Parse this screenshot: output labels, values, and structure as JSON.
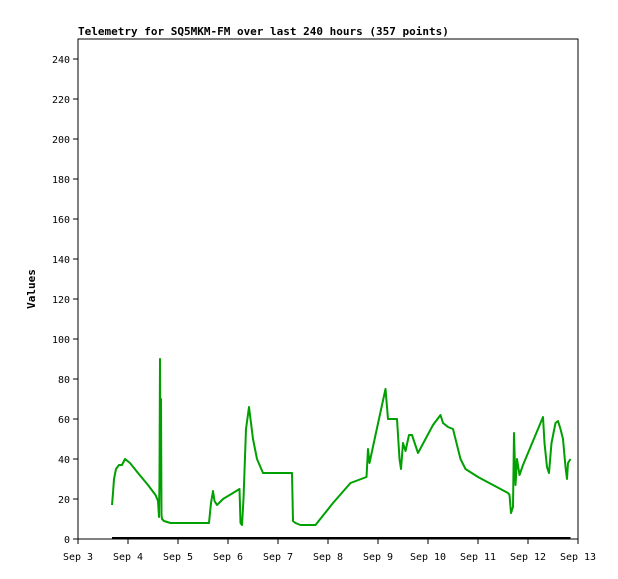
{
  "chart_data": {
    "type": "line",
    "title": "Telemetry for SQ5MKM-FM over last 240 hours (357 points)",
    "ylabel": "Values",
    "xlabel": "",
    "ylim": [
      0,
      250
    ],
    "xlim": [
      3,
      13
    ],
    "y_ticks": [
      0,
      20,
      40,
      60,
      80,
      100,
      120,
      140,
      160,
      180,
      200,
      220,
      240
    ],
    "x_ticks": [
      3,
      4,
      5,
      6,
      7,
      8,
      9,
      10,
      11,
      12,
      13
    ],
    "x_tick_labels": [
      "Sep 3",
      "Sep 4",
      "Sep 5",
      "Sep 6",
      "Sep 7",
      "Sep 8",
      "Sep 9",
      "Sep 10",
      "Sep 11",
      "Sep 12",
      "Sep 13"
    ],
    "grid": false,
    "legend": "none",
    "series": [
      {
        "color": "#00a000",
        "points": [
          [
            3.68,
            17
          ],
          [
            3.7,
            23
          ],
          [
            3.72,
            30
          ],
          [
            3.76,
            35
          ],
          [
            3.82,
            37
          ],
          [
            3.88,
            37
          ],
          [
            3.94,
            40
          ],
          [
            4.04,
            38
          ],
          [
            4.2,
            33
          ],
          [
            4.4,
            27
          ],
          [
            4.55,
            22
          ],
          [
            4.6,
            19
          ],
          [
            4.62,
            11
          ],
          [
            4.63,
            30
          ],
          [
            4.64,
            90
          ],
          [
            4.65,
            30
          ],
          [
            4.66,
            70
          ],
          [
            4.67,
            12
          ],
          [
            4.68,
            10
          ],
          [
            4.72,
            9
          ],
          [
            4.85,
            8
          ],
          [
            5.2,
            8
          ],
          [
            5.35,
            8
          ],
          [
            5.5,
            8
          ],
          [
            5.62,
            8
          ],
          [
            5.66,
            18
          ],
          [
            5.7,
            24
          ],
          [
            5.73,
            19
          ],
          [
            5.78,
            17
          ],
          [
            5.9,
            20
          ],
          [
            6.1,
            23
          ],
          [
            6.23,
            25
          ],
          [
            6.25,
            8
          ],
          [
            6.28,
            7
          ],
          [
            6.31,
            20
          ],
          [
            6.36,
            55
          ],
          [
            6.42,
            66
          ],
          [
            6.5,
            50
          ],
          [
            6.58,
            40
          ],
          [
            6.7,
            33
          ],
          [
            6.85,
            33
          ],
          [
            7.1,
            33
          ],
          [
            7.28,
            33
          ],
          [
            7.3,
            9
          ],
          [
            7.35,
            8
          ],
          [
            7.45,
            7
          ],
          [
            7.55,
            7
          ],
          [
            7.75,
            7
          ],
          [
            8.1,
            18
          ],
          [
            8.45,
            28
          ],
          [
            8.77,
            31
          ],
          [
            8.8,
            45
          ],
          [
            8.83,
            38
          ],
          [
            8.95,
            52
          ],
          [
            9.15,
            75
          ],
          [
            9.2,
            60
          ],
          [
            9.3,
            60
          ],
          [
            9.38,
            60
          ],
          [
            9.43,
            40
          ],
          [
            9.46,
            35
          ],
          [
            9.5,
            48
          ],
          [
            9.55,
            44
          ],
          [
            9.62,
            52
          ],
          [
            9.68,
            52
          ],
          [
            9.8,
            43
          ],
          [
            9.95,
            50
          ],
          [
            10.1,
            57
          ],
          [
            10.25,
            62
          ],
          [
            10.3,
            58
          ],
          [
            10.4,
            56
          ],
          [
            10.5,
            55
          ],
          [
            10.6,
            45
          ],
          [
            10.65,
            40
          ],
          [
            10.75,
            35
          ],
          [
            11.0,
            31
          ],
          [
            11.3,
            27
          ],
          [
            11.6,
            23
          ],
          [
            11.63,
            22
          ],
          [
            11.66,
            13
          ],
          [
            11.7,
            16
          ],
          [
            11.72,
            53
          ],
          [
            11.75,
            27
          ],
          [
            11.78,
            40
          ],
          [
            11.83,
            32
          ],
          [
            11.9,
            37
          ],
          [
            12.0,
            43
          ],
          [
            12.15,
            52
          ],
          [
            12.3,
            61
          ],
          [
            12.33,
            48
          ],
          [
            12.38,
            36
          ],
          [
            12.42,
            33
          ],
          [
            12.47,
            48
          ],
          [
            12.55,
            58
          ],
          [
            12.6,
            59
          ],
          [
            12.65,
            55
          ],
          [
            12.7,
            50
          ],
          [
            12.75,
            36
          ],
          [
            12.78,
            30
          ],
          [
            12.8,
            38
          ],
          [
            12.85,
            40
          ]
        ]
      },
      {
        "color": "#000000",
        "points": [
          [
            3.68,
            0.5
          ],
          [
            12.85,
            0.5
          ]
        ]
      }
    ]
  }
}
